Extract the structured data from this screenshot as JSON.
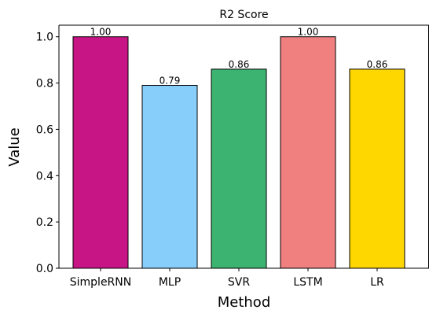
{
  "chart_data": {
    "type": "bar",
    "title": "R2 Score",
    "xlabel": "Method",
    "ylabel": "Value",
    "categories": [
      "SimpleRNN",
      "MLP",
      "SVR",
      "LSTM",
      "LR"
    ],
    "values": [
      1.0,
      0.79,
      0.86,
      1.0,
      0.86
    ],
    "data_labels": [
      "1.00",
      "0.79",
      "0.86",
      "1.00",
      "0.86"
    ],
    "colors": [
      "#c71585",
      "#87cefa",
      "#3cb371",
      "#f08080",
      "#ffd700"
    ],
    "edge_color": "#000000",
    "ylim": [
      0,
      1.05
    ],
    "yticks": [
      0.0,
      0.2,
      0.4,
      0.6,
      0.8,
      1.0
    ],
    "ytick_labels": [
      "0.0",
      "0.2",
      "0.4",
      "0.6",
      "0.8",
      "1.0"
    ],
    "grid": false,
    "legend": "none"
  }
}
